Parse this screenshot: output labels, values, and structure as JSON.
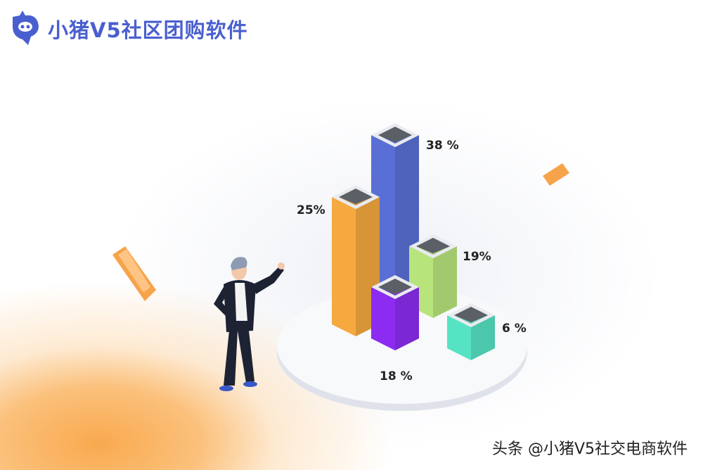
{
  "logo": {
    "title": "小猪V5社区团购软件",
    "icon": "pig-mascot-icon"
  },
  "watermark": "头条 @小猪V5社交电商软件",
  "chart_data": {
    "type": "bar",
    "style": "3d-isometric-columns-on-disc",
    "title": "",
    "categories": [
      "",
      "",
      "",
      "",
      ""
    ],
    "values": [
      25,
      38,
      18,
      19,
      6
    ],
    "labels": [
      "25%",
      "38 %",
      "18 %",
      "19%",
      "6 %"
    ],
    "unit": "%",
    "colors": [
      "#f6a93f",
      "#5a6fd6",
      "#8c2cf0",
      "#b8e47c",
      "#55e3c4"
    ]
  },
  "colors": {
    "brand": "#4a5fcf",
    "accent_orange": "#f7a34a"
  }
}
